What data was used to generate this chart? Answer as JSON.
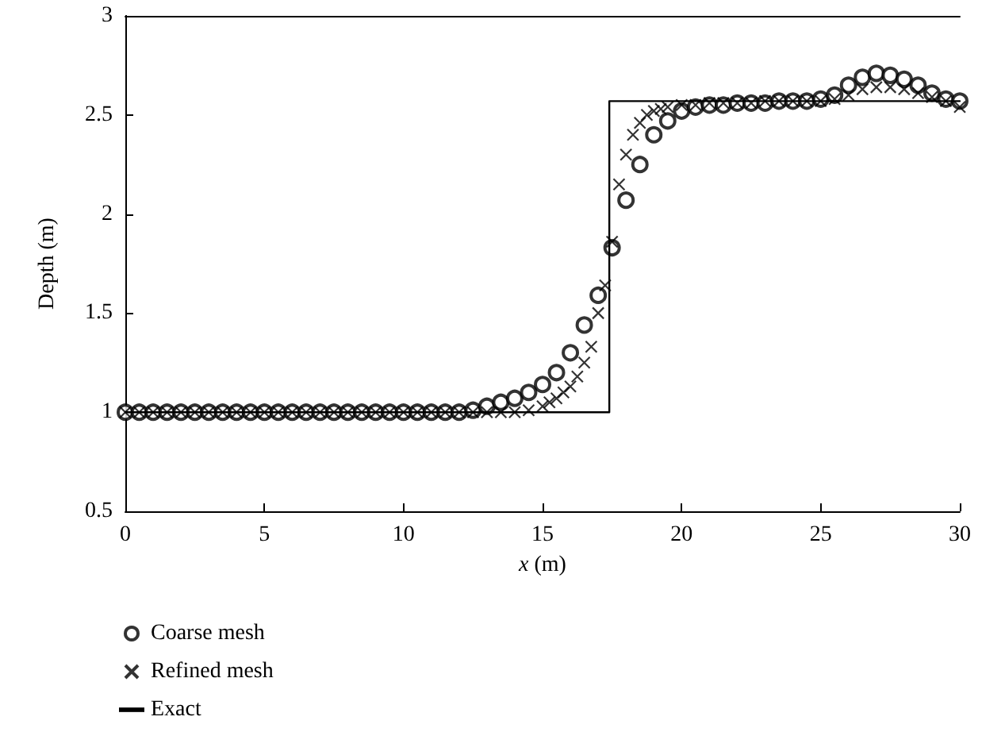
{
  "chart_data": {
    "type": "scatter",
    "xlabel": "x (m)",
    "ylabel": "Depth (m)",
    "xlim": [
      0,
      30
    ],
    "xticks": [
      0,
      5,
      10,
      15,
      20,
      25,
      30
    ],
    "ylim": [
      0.5,
      3
    ],
    "yticks": [
      0.5,
      1,
      1.5,
      2,
      2.5,
      3
    ],
    "grid": false,
    "legend": "bottom left",
    "series": [
      {
        "name": "Coarse mesh",
        "marker": "circle",
        "color": "#000000",
        "x": [
          0,
          0.5,
          1,
          1.5,
          2,
          2.5,
          3,
          3.5,
          4,
          4.5,
          5,
          5.5,
          6,
          6.5,
          7,
          7.5,
          8,
          8.5,
          9,
          9.5,
          10,
          10.5,
          11,
          11.5,
          12,
          12.5,
          13,
          13.5,
          14,
          14.5,
          15,
          15.5,
          16,
          16.5,
          17,
          17.5,
          18,
          18.5,
          19,
          19.5,
          20,
          20.5,
          21,
          21.5,
          22,
          22.5,
          23,
          23.5,
          24,
          24.5,
          25,
          25.5,
          26,
          26.5,
          27,
          27.5,
          28,
          28.5,
          29,
          29.5,
          30
        ],
        "values": [
          1,
          1,
          1,
          1,
          1,
          1,
          1,
          1,
          1,
          1,
          1,
          1,
          1,
          1,
          1,
          1,
          1,
          1,
          1,
          1,
          1,
          1,
          1,
          1,
          1,
          1.01,
          1.03,
          1.05,
          1.07,
          1.1,
          1.14,
          1.2,
          1.3,
          1.44,
          1.59,
          1.83,
          2.07,
          2.25,
          2.4,
          2.47,
          2.52,
          2.54,
          2.55,
          2.55,
          2.56,
          2.56,
          2.56,
          2.57,
          2.57,
          2.57,
          2.58,
          2.6,
          2.65,
          2.69,
          2.71,
          2.7,
          2.68,
          2.65,
          2.61,
          2.58,
          2.57
        ]
      },
      {
        "name": "Refined mesh",
        "marker": "cross",
        "color": "#000000",
        "x": [
          0,
          0.5,
          1,
          1.5,
          2,
          2.5,
          3,
          3.5,
          4,
          4.5,
          5,
          5.5,
          6,
          6.5,
          7,
          7.5,
          8,
          8.5,
          9,
          9.5,
          10,
          10.5,
          11,
          11.5,
          12,
          12.5,
          13,
          13.5,
          14,
          14.5,
          15,
          15.25,
          15.5,
          15.75,
          16,
          16.25,
          16.5,
          16.75,
          17,
          17.25,
          17.5,
          17.75,
          18,
          18.25,
          18.5,
          18.75,
          19,
          19.25,
          19.5,
          20,
          20.5,
          21,
          21.5,
          22,
          22.5,
          23,
          23.5,
          24,
          24.5,
          25,
          25.5,
          26,
          26.5,
          27,
          27.5,
          28,
          28.5,
          29,
          29.5,
          30
        ],
        "values": [
          1,
          1,
          1,
          1,
          1,
          1,
          1,
          1,
          1,
          1,
          1,
          1,
          1,
          1,
          1,
          1,
          1,
          1,
          1,
          1,
          1,
          1,
          1,
          1,
          1,
          1,
          1,
          1,
          1,
          1.01,
          1.03,
          1.05,
          1.07,
          1.1,
          1.13,
          1.18,
          1.25,
          1.33,
          1.5,
          1.64,
          1.86,
          2.15,
          2.3,
          2.4,
          2.46,
          2.5,
          2.52,
          2.53,
          2.54,
          2.55,
          2.55,
          2.56,
          2.56,
          2.56,
          2.56,
          2.57,
          2.57,
          2.57,
          2.57,
          2.57,
          2.58,
          2.6,
          2.63,
          2.64,
          2.64,
          2.63,
          2.61,
          2.59,
          2.57,
          2.54
        ]
      },
      {
        "name": "Exact",
        "type": "line",
        "marker": "none",
        "line_style": "solid",
        "color": "#000000",
        "x": [
          0,
          17.4,
          17.4,
          30
        ],
        "values": [
          1,
          1,
          2.57,
          2.57
        ]
      }
    ]
  }
}
